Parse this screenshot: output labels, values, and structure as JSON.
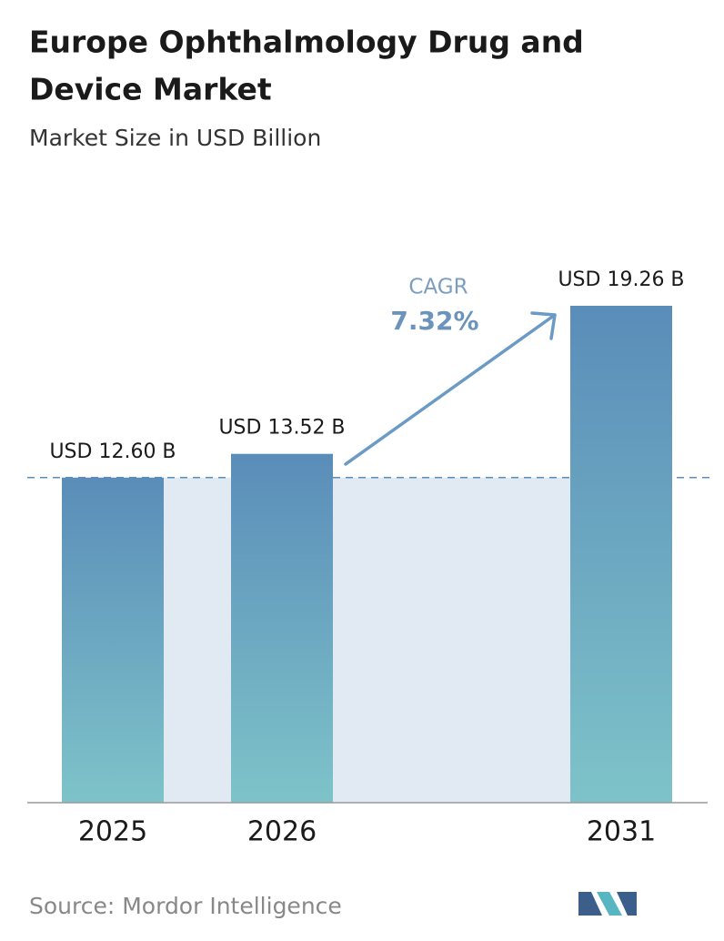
{
  "chart_data": {
    "type": "bar",
    "title": [
      "Europe Ophthalmology Drug and",
      "Device Market"
    ],
    "subtitle": "Market Size in USD Billion",
    "categories": [
      "2025",
      "2026",
      "2031"
    ],
    "values": [
      12.6,
      13.52,
      19.26
    ],
    "value_labels": [
      "USD 12.60 B",
      "USD 13.52 B",
      "USD 19.26 B"
    ],
    "annotation": {
      "label": "CAGR",
      "value": "7.32%"
    },
    "source": "Source:  Mordor Intelligence"
  }
}
